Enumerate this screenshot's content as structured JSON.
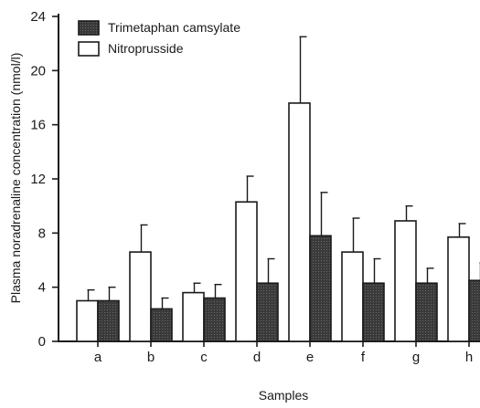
{
  "chart_data": {
    "type": "bar",
    "title": "",
    "xlabel": "Samples",
    "ylabel": "Plasma noradrenaline concentration (nmol/l)",
    "categories": [
      "a",
      "b",
      "c",
      "d",
      "e",
      "f",
      "g",
      "h"
    ],
    "ylim": [
      0,
      24
    ],
    "yticks": [
      "0",
      "4",
      "8",
      "12",
      "16",
      "20",
      "24"
    ],
    "series": [
      {
        "name": "Nitroprusside",
        "color": "#ffffff",
        "values": [
          3.0,
          6.6,
          3.6,
          10.3,
          17.6,
          6.6,
          8.9,
          7.7
        ],
        "errors": [
          0.8,
          2.0,
          0.7,
          1.9,
          4.9,
          2.5,
          1.1,
          1.0
        ]
      },
      {
        "name": "Trimetaphan camsylate",
        "color": "#404040",
        "values": [
          3.0,
          2.4,
          3.2,
          4.3,
          7.8,
          4.3,
          4.3,
          4.5
        ],
        "errors": [
          1.0,
          0.8,
          1.0,
          1.8,
          3.2,
          1.8,
          1.1,
          1.3
        ]
      }
    ],
    "legend": {
      "placement": "top-left",
      "entries": [
        "Trimetaphan camsylate",
        "Nitroprusside"
      ]
    },
    "grid": false
  }
}
